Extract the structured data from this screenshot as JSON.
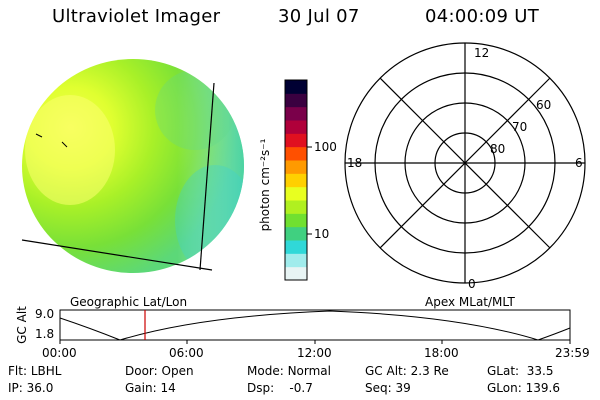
{
  "header": {
    "instrument": "Ultraviolet Imager",
    "date": "30 Jul 07",
    "time": "04:00:09 UT"
  },
  "colorbar": {
    "unit_label": "photon cm⁻²s⁻¹",
    "ticks": [
      "100",
      "10"
    ],
    "colors": [
      "#000033",
      "#3a0040",
      "#7a004a",
      "#b0003a",
      "#e01020",
      "#ff5000",
      "#ff9a00",
      "#ffd000",
      "#e8ff20",
      "#b0f020",
      "#70e030",
      "#40d080",
      "#30d8d8",
      "#a0ecec",
      "#e8f4f4"
    ]
  },
  "image_panel": {
    "label": "Geographic Lat/Lon"
  },
  "polar_plot": {
    "label": "Apex MLat/MLT",
    "mlt_labels": {
      "top": "12",
      "left": "18",
      "right": "6",
      "bottom": "0"
    },
    "lat_labels": [
      "60",
      "70",
      "80"
    ]
  },
  "timeline": {
    "ylabel": "GC Alt",
    "y_ticks": [
      "9.0",
      "1.8"
    ],
    "x_ticks": [
      "00:00",
      "06:00",
      "12:00",
      "18:00",
      "23:59"
    ],
    "marker_color": "#cc0000"
  },
  "info": {
    "row1": [
      {
        "key": "Flt:",
        "value": "LBHL"
      },
      {
        "key": "Door:",
        "value": "Open"
      },
      {
        "key": "Mode:",
        "value": "Normal"
      },
      {
        "key": "GC Alt:",
        "value": "2.3 Re"
      },
      {
        "key": "GLat:",
        "value": "33.5"
      }
    ],
    "row2": [
      {
        "key": "IP:",
        "value": "36.0"
      },
      {
        "key": "Gain:",
        "value": "14"
      },
      {
        "key": "Dsp:",
        "value": "-0.7"
      },
      {
        "key": "Seq:",
        "value": "39"
      },
      {
        "key": "GLon:",
        "value": "139.6"
      }
    ]
  }
}
